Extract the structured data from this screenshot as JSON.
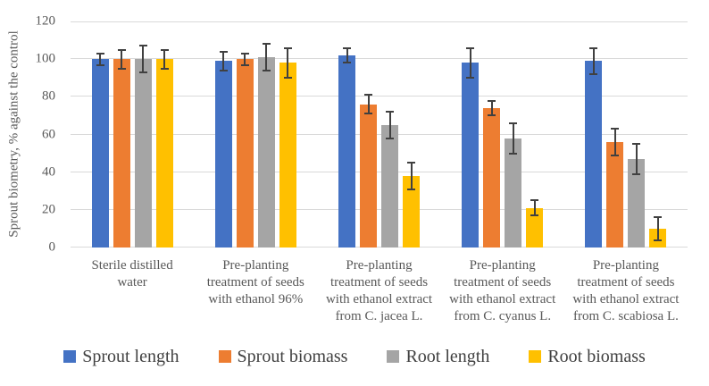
{
  "chart_data": {
    "type": "bar",
    "title": "",
    "xlabel": "",
    "ylabel": "Sprout biometry, % against the control",
    "ylim": [
      0,
      120
    ],
    "yticks": [
      0,
      20,
      40,
      60,
      80,
      100,
      120
    ],
    "grid": true,
    "legend_position": "bottom",
    "categories": [
      "Sterile distilled water",
      "Pre-planting treatment of seeds with ethanol 96%",
      "Pre-planting treatment of seeds with ethanol extract from C. jacea L.",
      "Pre-planting treatment of seeds with ethanol extract from C. cyanus L.",
      "Pre-planting treatment of seeds with ethanol extract from C. scabiosa L."
    ],
    "series": [
      {
        "name": "Sprout length",
        "color": "#4472C4",
        "values": [
          100,
          99,
          102,
          98,
          99
        ],
        "errors": [
          3,
          5,
          4,
          8,
          7
        ]
      },
      {
        "name": "Sprout biomass",
        "color": "#ED7D31",
        "values": [
          100,
          100,
          76,
          74,
          56
        ],
        "errors": [
          5,
          3,
          5,
          4,
          7
        ]
      },
      {
        "name": "Root length",
        "color": "#A5A5A5",
        "values": [
          100,
          101,
          65,
          58,
          47
        ],
        "errors": [
          7,
          7,
          7,
          8,
          8
        ]
      },
      {
        "name": "Root biomass",
        "color": "#FFC000",
        "values": [
          100,
          98,
          38,
          21,
          10
        ],
        "errors": [
          5,
          8,
          7,
          4,
          6
        ]
      }
    ],
    "error_bar_color": "#404040",
    "gridline_color": "#D9D9D9",
    "axis_text_color": "#595959",
    "legend_text_color": "#404040"
  }
}
